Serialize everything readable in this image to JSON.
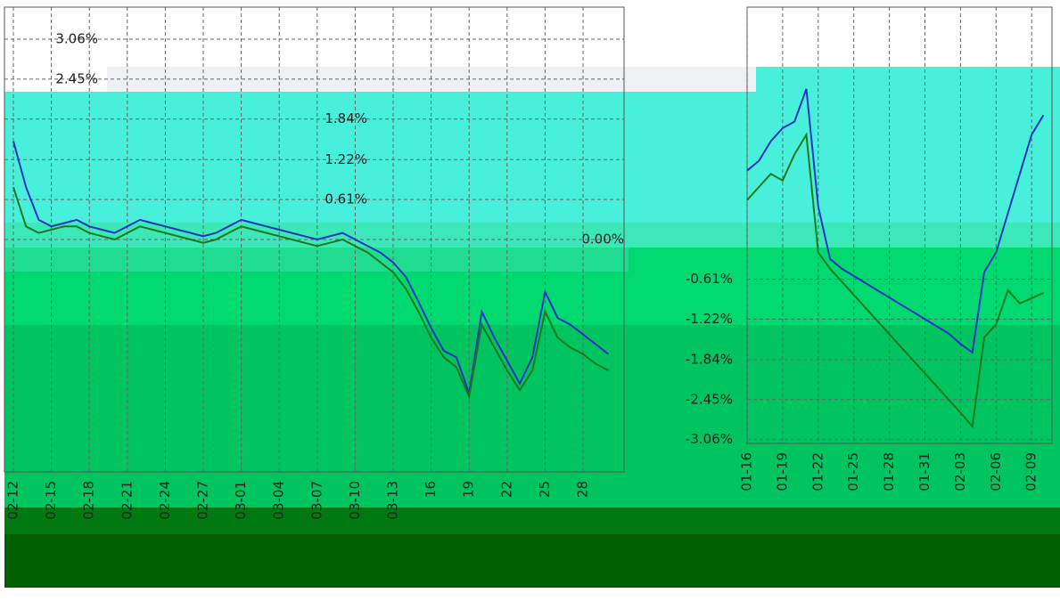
{
  "chart_data": [
    {
      "type": "line",
      "categories": [
        "02-12",
        null,
        null,
        "02-15",
        null,
        null,
        "02-18",
        null,
        null,
        "02-21",
        null,
        null,
        "02-24",
        null,
        null,
        "02-27",
        null,
        null,
        "03-01",
        null,
        null,
        "03-04",
        null,
        null,
        "03-07",
        null,
        null,
        "03-10",
        null,
        null,
        "03-13",
        null,
        null,
        "16",
        null,
        null,
        "19",
        null,
        null,
        "22",
        null,
        null,
        "25",
        null,
        null,
        "28",
        null,
        null
      ],
      "series": [
        {
          "color": "#2433c0",
          "values": [
            1.5,
            0.8,
            0.3,
            0.2,
            0.25,
            0.3,
            0.2,
            0.15,
            0.1,
            0.2,
            0.3,
            0.25,
            0.2,
            0.15,
            0.1,
            0.05,
            0.1,
            0.2,
            0.3,
            0.25,
            0.2,
            0.15,
            0.1,
            0.05,
            0,
            0.05,
            0.1,
            0,
            -0.1,
            -0.2,
            -0.35,
            -0.57,
            -0.95,
            -1.35,
            -1.7,
            -1.8,
            -2.35,
            -1.1,
            -1.5,
            -1.85,
            -2.2,
            -1.8,
            -0.8,
            -1.2,
            -1.3,
            -1.45,
            -1.6,
            -1.75
          ]
        },
        {
          "color": "#1a7a1a",
          "values": [
            0.8,
            0.2,
            0.1,
            0.15,
            0.2,
            0.2,
            0.1,
            0.05,
            0,
            0.1,
            0.2,
            0.15,
            0.1,
            0.05,
            0,
            -0.05,
            0,
            0.1,
            0.2,
            0.15,
            0.1,
            0.05,
            0,
            -0.05,
            -0.1,
            -0.05,
            0,
            -0.1,
            -0.2,
            -0.35,
            -0.5,
            -0.75,
            -1.1,
            -1.5,
            -1.8,
            -1.95,
            -2.4,
            -1.3,
            -1.65,
            -2.0,
            -2.3,
            -2.0,
            -1.1,
            -1.5,
            -1.65,
            -1.75,
            -1.9,
            -2.0
          ]
        }
      ],
      "ylim": [
        -3.55,
        3.55
      ],
      "yticks": [
        {
          "value": 3.06,
          "label": "3.06%"
        },
        {
          "value": 2.45,
          "label": "2.45%"
        },
        {
          "value": 1.84,
          "label": "1.84%"
        },
        {
          "value": 1.22,
          "label": "1.22%"
        },
        {
          "value": 0.61,
          "label": "0.61%"
        },
        {
          "value": 0,
          "label": "0.00%"
        }
      ],
      "grid": true
    },
    {
      "type": "line",
      "categories": [
        "01-16",
        null,
        null,
        "01-19",
        null,
        null,
        "01-22",
        null,
        null,
        "01-25",
        null,
        null,
        "01-28",
        null,
        null,
        "01-31",
        null,
        null,
        "02-03",
        null,
        null,
        "02-06",
        null,
        null,
        "02-09",
        null
      ],
      "series": [
        {
          "color": "#2433c0",
          "values": [
            1.05,
            1.2,
            1.5,
            1.7,
            1.8,
            2.3,
            0.5,
            -0.3,
            -0.45,
            -0.56,
            -0.67,
            -0.78,
            -0.89,
            -1.0,
            -1.11,
            -1.22,
            -1.33,
            -1.44,
            -1.6,
            -1.73,
            -0.5,
            -0.2,
            0.4,
            1.0,
            1.6,
            1.9
          ]
        },
        {
          "color": "#1a7a1a",
          "values": [
            0.6,
            0.8,
            1.0,
            0.9,
            1.3,
            1.6,
            -0.2,
            -0.45,
            -0.65,
            -0.85,
            -1.05,
            -1.25,
            -1.45,
            -1.65,
            -1.85,
            -2.05,
            -2.25,
            -2.45,
            -2.65,
            -2.86,
            -1.5,
            -1.3,
            -0.78,
            -0.98,
            -0.9,
            -0.82
          ]
        }
      ],
      "ylim": [
        -3.12,
        3.55
      ],
      "yticks": [
        {
          "value": -0.61,
          "label": "-0.61%"
        },
        {
          "value": -1.22,
          "label": "-1.22%"
        },
        {
          "value": -1.84,
          "label": "-1.84%"
        },
        {
          "value": -2.45,
          "label": "-2.45%"
        },
        {
          "value": -3.06,
          "label": "-3.06%"
        }
      ],
      "grid": true
    }
  ]
}
